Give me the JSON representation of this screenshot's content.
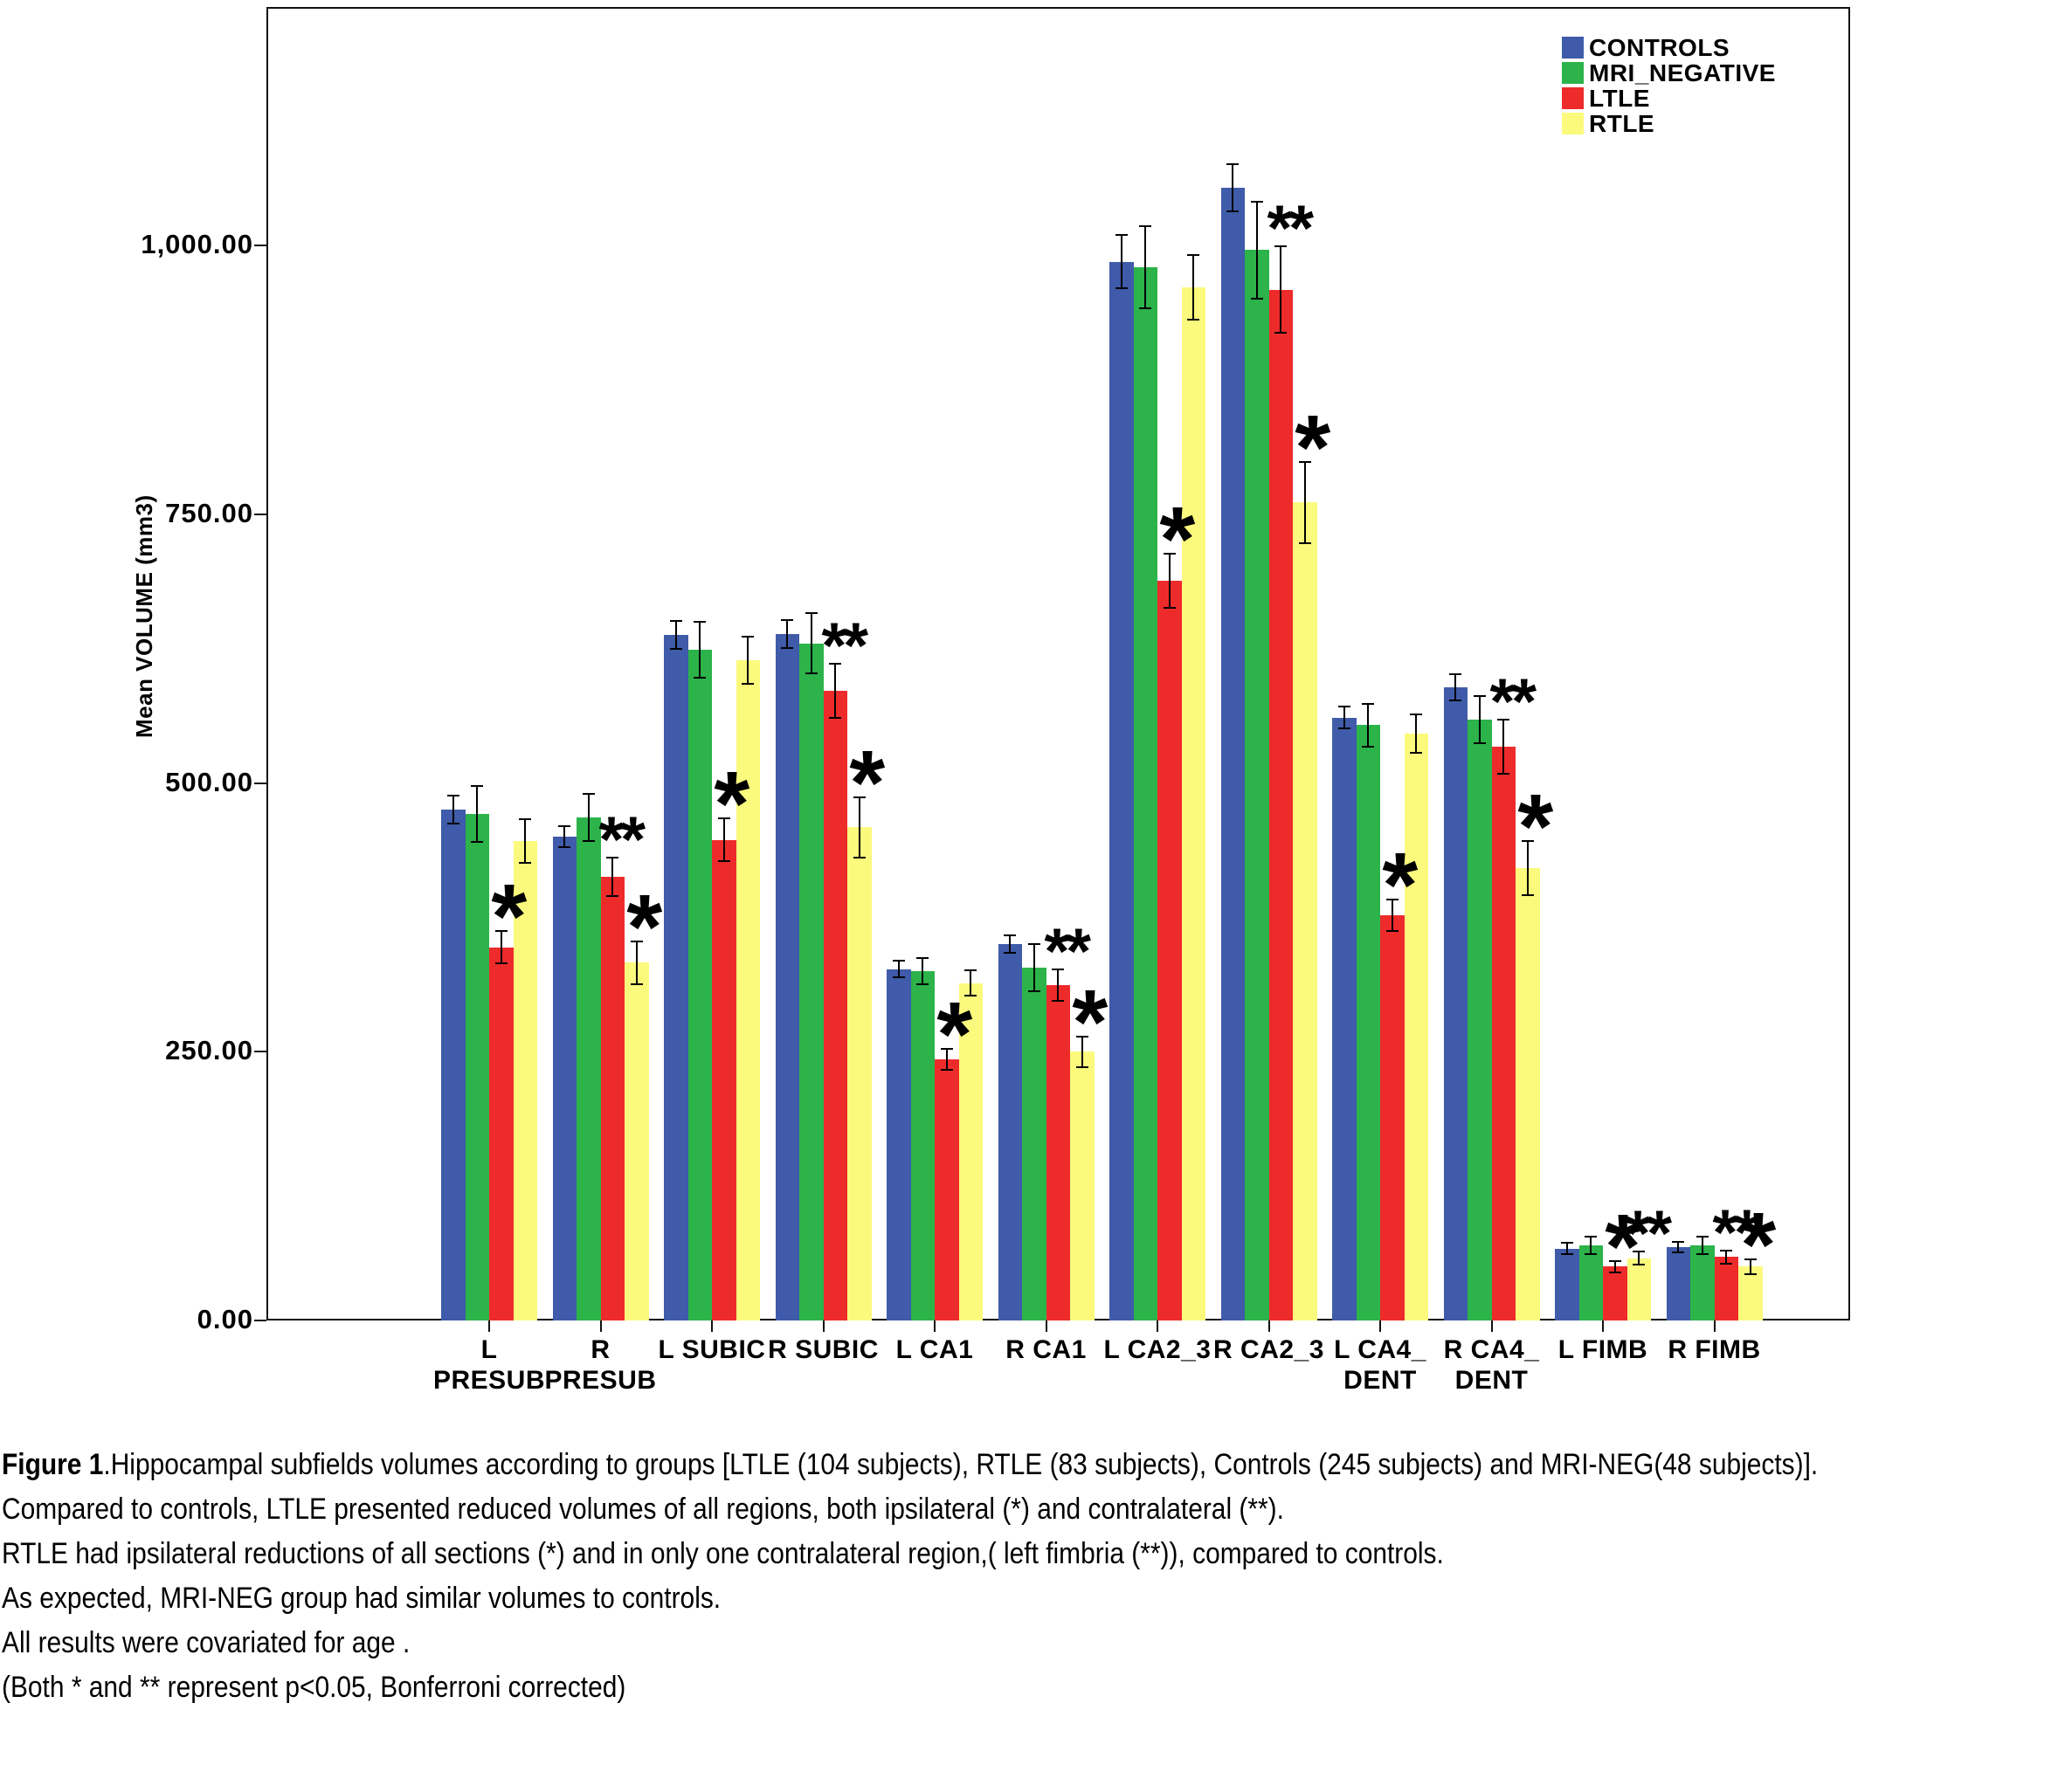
{
  "chart_data": {
    "type": "bar",
    "title": "",
    "xlabel": "",
    "ylabel": "Mean VOLUME (mm3)",
    "ylim": [
      0,
      1222
    ],
    "grid": false,
    "legend_position": "top-right-inside",
    "background_color": "#ffffff",
    "axis_color": "#111111",
    "yticks": [
      0,
      250,
      500,
      750,
      1000
    ],
    "ytick_labels": [
      "0.00",
      "250.00",
      "500.00",
      "750.00",
      "1,000.00"
    ],
    "categories": [
      "L PRESUB",
      "R PRESUB",
      "L SUBIC",
      "R SUBIC",
      "L CA1",
      "R CA1",
      "L CA2_3",
      "R CA2_3",
      "L CA4_DENT",
      "R CA4_DENT",
      "L FIMB",
      "R FIMB"
    ],
    "category_display": [
      [
        "L",
        "PRESUB"
      ],
      [
        "R",
        "PRESUB"
      ],
      [
        "L SUBIC"
      ],
      [
        "R SUBIC"
      ],
      [
        "L CA1"
      ],
      [
        "R CA1"
      ],
      [
        "L CA2_3"
      ],
      [
        "R CA2_3"
      ],
      [
        "L CA4_",
        "DENT"
      ],
      [
        "R CA4_",
        "DENT"
      ],
      [
        "L FIMB"
      ],
      [
        "R FIMB"
      ]
    ],
    "series": [
      {
        "name": "CONTROLS",
        "color": "#3F5BA9",
        "values": [
          475,
          450,
          638,
          639,
          327,
          350,
          985,
          1054,
          561,
          589,
          67,
          68
        ],
        "errors": [
          13,
          10,
          13,
          13,
          8,
          8,
          25,
          22,
          10,
          12,
          5,
          5
        ]
      },
      {
        "name": "MRI_NEGATIVE",
        "color": "#2CB34A",
        "values": [
          471,
          468,
          624,
          630,
          325,
          328,
          980,
          996,
          554,
          559,
          70,
          70
        ],
        "errors": [
          26,
          22,
          26,
          28,
          12,
          22,
          38,
          45,
          20,
          22,
          8,
          8
        ]
      },
      {
        "name": "LTLE",
        "color": "#EE2B2B",
        "values": [
          347,
          413,
          447,
          586,
          243,
          312,
          688,
          959,
          377,
          534,
          50,
          59
        ],
        "errors": [
          15,
          18,
          20,
          25,
          10,
          15,
          25,
          40,
          15,
          25,
          5,
          6
        ]
      },
      {
        "name": "RTLE",
        "color": "#FBFA7D",
        "values": [
          446,
          333,
          614,
          459,
          314,
          250,
          961,
          761,
          546,
          421,
          58,
          50
        ],
        "errors": [
          20,
          20,
          22,
          28,
          12,
          14,
          30,
          38,
          18,
          25,
          6,
          7
        ]
      }
    ],
    "significance": [
      {
        "group": 0,
        "series": "LTLE",
        "symbol": "*"
      },
      {
        "group": 1,
        "series": "LTLE",
        "symbol": "**"
      },
      {
        "group": 1,
        "series": "RTLE",
        "symbol": "*"
      },
      {
        "group": 2,
        "series": "LTLE",
        "symbol": "*"
      },
      {
        "group": 3,
        "series": "LTLE",
        "symbol": "**"
      },
      {
        "group": 3,
        "series": "RTLE",
        "symbol": "*"
      },
      {
        "group": 4,
        "series": "LTLE",
        "symbol": "*"
      },
      {
        "group": 5,
        "series": "LTLE",
        "symbol": "**"
      },
      {
        "group": 5,
        "series": "RTLE",
        "symbol": "*"
      },
      {
        "group": 6,
        "series": "LTLE",
        "symbol": "*"
      },
      {
        "group": 7,
        "series": "LTLE",
        "symbol": "**"
      },
      {
        "group": 7,
        "series": "RTLE",
        "symbol": "*"
      },
      {
        "group": 8,
        "series": "LTLE",
        "symbol": "*"
      },
      {
        "group": 9,
        "series": "LTLE",
        "symbol": "**"
      },
      {
        "group": 9,
        "series": "RTLE",
        "symbol": "*"
      },
      {
        "group": 10,
        "series": "LTLE",
        "symbol": "*"
      },
      {
        "group": 10,
        "series": "RTLE",
        "symbol": "**"
      },
      {
        "group": 11,
        "series": "LTLE",
        "symbol": "**"
      },
      {
        "group": 11,
        "series": "RTLE",
        "symbol": "*"
      }
    ]
  },
  "caption": {
    "figure_label": "Figure 1",
    "lines": [
      ".Hippocampal subfields volumes according to groups [LTLE (104 subjects), RTLE (83 subjects), Controls (245 subjects) and MRI-NEG(48 subjects)].",
      "Compared to controls, LTLE presented reduced volumes of all regions, both ipsilateral (*) and contralateral (**).",
      "RTLE had ipsilateral reductions of all sections (*) and in only one contralateral region,( left fimbria (**)), compared to controls.",
      "As expected, MRI-NEG group had similar volumes to controls.",
      "All results were covariated for age .",
      "(Both * and ** represent p<0.05, Bonferroni corrected)"
    ]
  }
}
